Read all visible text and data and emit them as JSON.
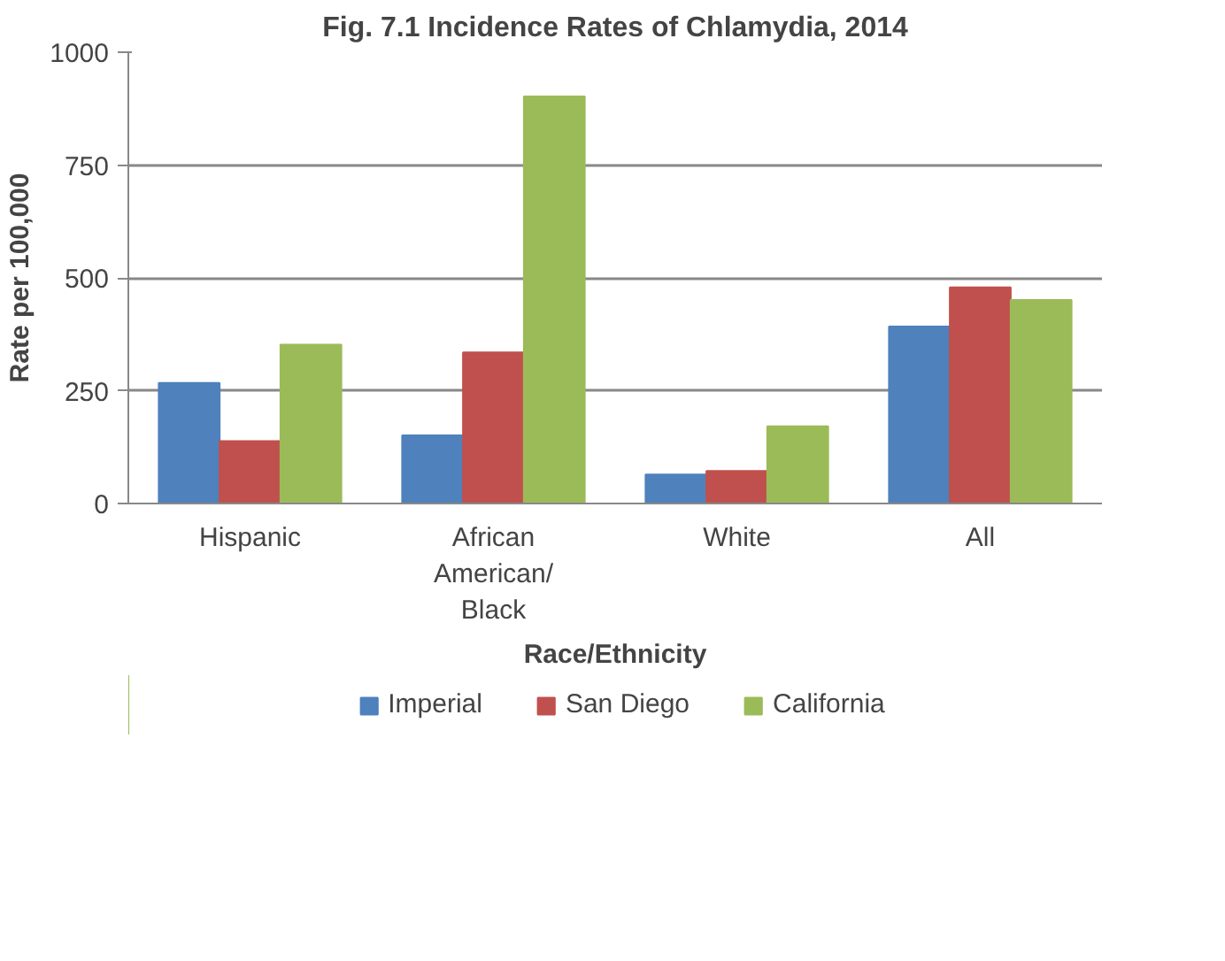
{
  "chart_data": {
    "type": "bar",
    "title": "Fig. 7.1 Incidence Rates of Chlamydia, 2014",
    "xlabel": "Race/Ethnicity",
    "ylabel": "Rate per 100,000",
    "categories": [
      "Hispanic",
      "African\nAmerican/\nBlack",
      "White",
      "All"
    ],
    "series": [
      {
        "name": "Imperial",
        "color": "#4f81bd",
        "values": [
          267,
          151,
          64,
          392
        ]
      },
      {
        "name": "San Diego",
        "color": "#c0504d",
        "values": [
          138,
          335,
          72,
          479
        ]
      },
      {
        "name": "California",
        "color": "#9bbb59",
        "values": [
          352,
          902,
          171,
          451
        ]
      }
    ],
    "ylim": [
      0,
      1000
    ],
    "yticks": [
      0,
      250,
      500,
      750,
      1000
    ],
    "grid": "y",
    "legend": "bottom"
  }
}
